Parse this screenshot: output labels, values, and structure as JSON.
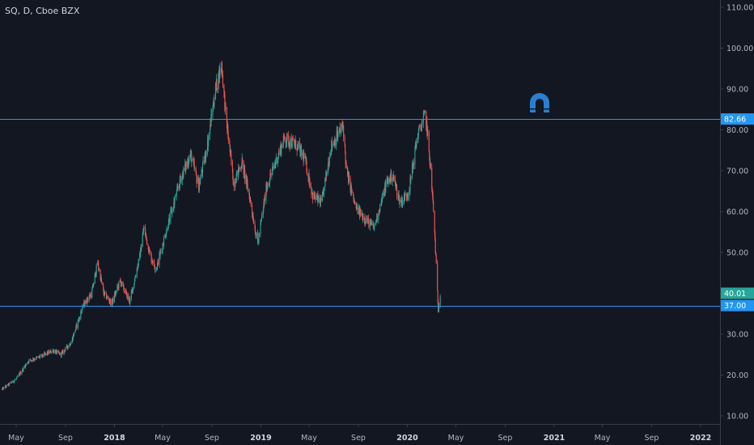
{
  "chart_data": {
    "type": "candlestick",
    "title": "SQ, D, Cboe BZX",
    "ylim": [
      9,
      110
    ],
    "y_ticks": [
      "10.00",
      "20.00",
      "30.00",
      "40.00",
      "50.00",
      "60.00",
      "70.00",
      "80.00",
      "90.00",
      "100.00",
      "110.00"
    ],
    "x_ticks": [
      {
        "label": "May",
        "date": "2017-05-01",
        "bold": false
      },
      {
        "label": "Sep",
        "date": "2017-09-01",
        "bold": false
      },
      {
        "label": "2018",
        "date": "2018-01-01",
        "bold": true
      },
      {
        "label": "May",
        "date": "2018-05-01",
        "bold": false
      },
      {
        "label": "Sep",
        "date": "2018-09-01",
        "bold": false
      },
      {
        "label": "2019",
        "date": "2019-01-01",
        "bold": true
      },
      {
        "label": "May",
        "date": "2019-05-01",
        "bold": false
      },
      {
        "label": "Sep",
        "date": "2019-09-01",
        "bold": false
      },
      {
        "label": "2020",
        "date": "2020-01-01",
        "bold": true
      },
      {
        "label": "May",
        "date": "2020-05-01",
        "bold": false
      },
      {
        "label": "Sep",
        "date": "2020-09-01",
        "bold": false
      },
      {
        "label": "2021",
        "date": "2021-01-01",
        "bold": true
      },
      {
        "label": "May",
        "date": "2021-05-01",
        "bold": false
      },
      {
        "label": "Sep",
        "date": "2021-09-01",
        "bold": false
      },
      {
        "label": "2022",
        "date": "2022-01-01",
        "bold": true
      }
    ],
    "horizontal_lines": [
      {
        "value": 82.66,
        "label": "82.66",
        "color": "#2196f3"
      },
      {
        "value": 37.0,
        "label": "37.00",
        "color": "#2196f3"
      }
    ],
    "last_price": {
      "value": 40.01,
      "label": "40.01",
      "color": "#26a69a"
    },
    "price_path": [
      [
        "2017-03-27",
        16.5
      ],
      [
        "2017-05-01",
        19.0
      ],
      [
        "2017-06-01",
        23.5
      ],
      [
        "2017-07-01",
        24.5
      ],
      [
        "2017-08-01",
        26.0
      ],
      [
        "2017-08-20",
        25.0
      ],
      [
        "2017-09-15",
        28.0
      ],
      [
        "2017-10-15",
        37.0
      ],
      [
        "2017-11-05",
        40.0
      ],
      [
        "2017-11-20",
        47.5
      ],
      [
        "2017-12-05",
        40.0
      ],
      [
        "2017-12-25",
        37.5
      ],
      [
        "2018-01-15",
        43.0
      ],
      [
        "2018-02-08",
        38.0
      ],
      [
        "2018-03-05",
        49.0
      ],
      [
        "2018-03-15",
        56.0
      ],
      [
        "2018-04-01",
        49.0
      ],
      [
        "2018-04-15",
        46.0
      ],
      [
        "2018-05-15",
        57.0
      ],
      [
        "2018-06-15",
        68.0
      ],
      [
        "2018-07-10",
        74.0
      ],
      [
        "2018-07-30",
        66.0
      ],
      [
        "2018-08-20",
        76.0
      ],
      [
        "2018-09-10",
        90.0
      ],
      [
        "2018-09-25",
        96.0
      ],
      [
        "2018-10-05",
        84.0
      ],
      [
        "2018-10-25",
        67.0
      ],
      [
        "2018-11-15",
        72.0
      ],
      [
        "2018-12-05",
        63.0
      ],
      [
        "2018-12-24",
        52.0
      ],
      [
        "2019-01-15",
        66.0
      ],
      [
        "2019-02-10",
        73.0
      ],
      [
        "2019-03-01",
        78.0
      ],
      [
        "2019-04-01",
        76.0
      ],
      [
        "2019-04-20",
        73.0
      ],
      [
        "2019-05-10",
        64.0
      ],
      [
        "2019-06-01",
        62.0
      ],
      [
        "2019-06-25",
        76.0
      ],
      [
        "2019-07-25",
        81.0
      ],
      [
        "2019-08-02",
        70.0
      ],
      [
        "2019-08-25",
        61.0
      ],
      [
        "2019-09-20",
        58.0
      ],
      [
        "2019-10-10",
        56.0
      ],
      [
        "2019-11-10",
        67.0
      ],
      [
        "2019-11-25",
        69.0
      ],
      [
        "2019-12-15",
        62.0
      ],
      [
        "2020-01-05",
        65.0
      ],
      [
        "2020-01-25",
        78.0
      ],
      [
        "2020-02-15",
        84.0
      ],
      [
        "2020-02-25",
        74.0
      ],
      [
        "2020-03-05",
        62.0
      ],
      [
        "2020-03-10",
        53.0
      ],
      [
        "2020-03-18",
        36.0
      ],
      [
        "2020-03-23",
        40.0
      ]
    ]
  },
  "watermark_icon": "magnet-icon",
  "colors": {
    "background": "#131722",
    "up": "#26a69a",
    "down": "#ef5350",
    "line": "#2196f3",
    "axis_text": "#b2b5be",
    "axis_border": "#3a3e4a"
  }
}
